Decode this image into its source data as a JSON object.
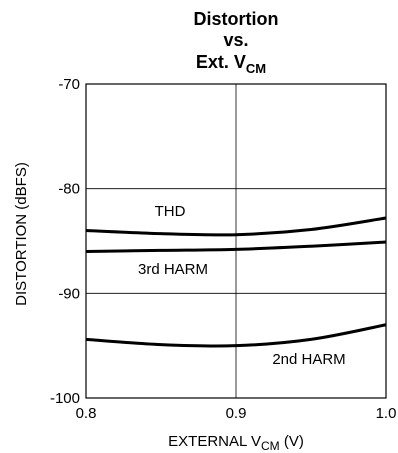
{
  "chart_data": {
    "type": "line",
    "title_lines": [
      "Distortion",
      "vs."
    ],
    "title_line3": {
      "text": "Ext. V",
      "subscript": "CM"
    },
    "xlabel": {
      "text": "EXTERNAL V",
      "subscript": "CM",
      "suffix": " (V)"
    },
    "ylabel": "DISTORTION (dBFS)",
    "xlim": [
      0.8,
      1.0
    ],
    "ylim": [
      -100,
      -70
    ],
    "x_ticks": [
      0.8,
      0.9,
      1.0
    ],
    "x_tick_labels": [
      "0.8",
      "0.9",
      "1.0"
    ],
    "y_ticks": [
      -70,
      -80,
      -90,
      -100
    ],
    "y_tick_labels": [
      "-70",
      "-80",
      "-90",
      "-100"
    ],
    "grid": true,
    "series": [
      {
        "name": "THD",
        "x": [
          0.8,
          0.85,
          0.9,
          0.95,
          1.0
        ],
        "y": [
          -84.0,
          -84.3,
          -84.4,
          -83.9,
          -82.8
        ]
      },
      {
        "name": "3rd HARM",
        "x": [
          0.8,
          0.85,
          0.9,
          0.95,
          1.0
        ],
        "y": [
          -86.0,
          -85.9,
          -85.8,
          -85.5,
          -85.1
        ]
      },
      {
        "name": "2nd HARM",
        "x": [
          0.8,
          0.85,
          0.9,
          0.95,
          1.0
        ],
        "y": [
          -94.4,
          -94.9,
          -95.0,
          -94.4,
          -93.0
        ]
      }
    ],
    "line_color": "#000000"
  }
}
